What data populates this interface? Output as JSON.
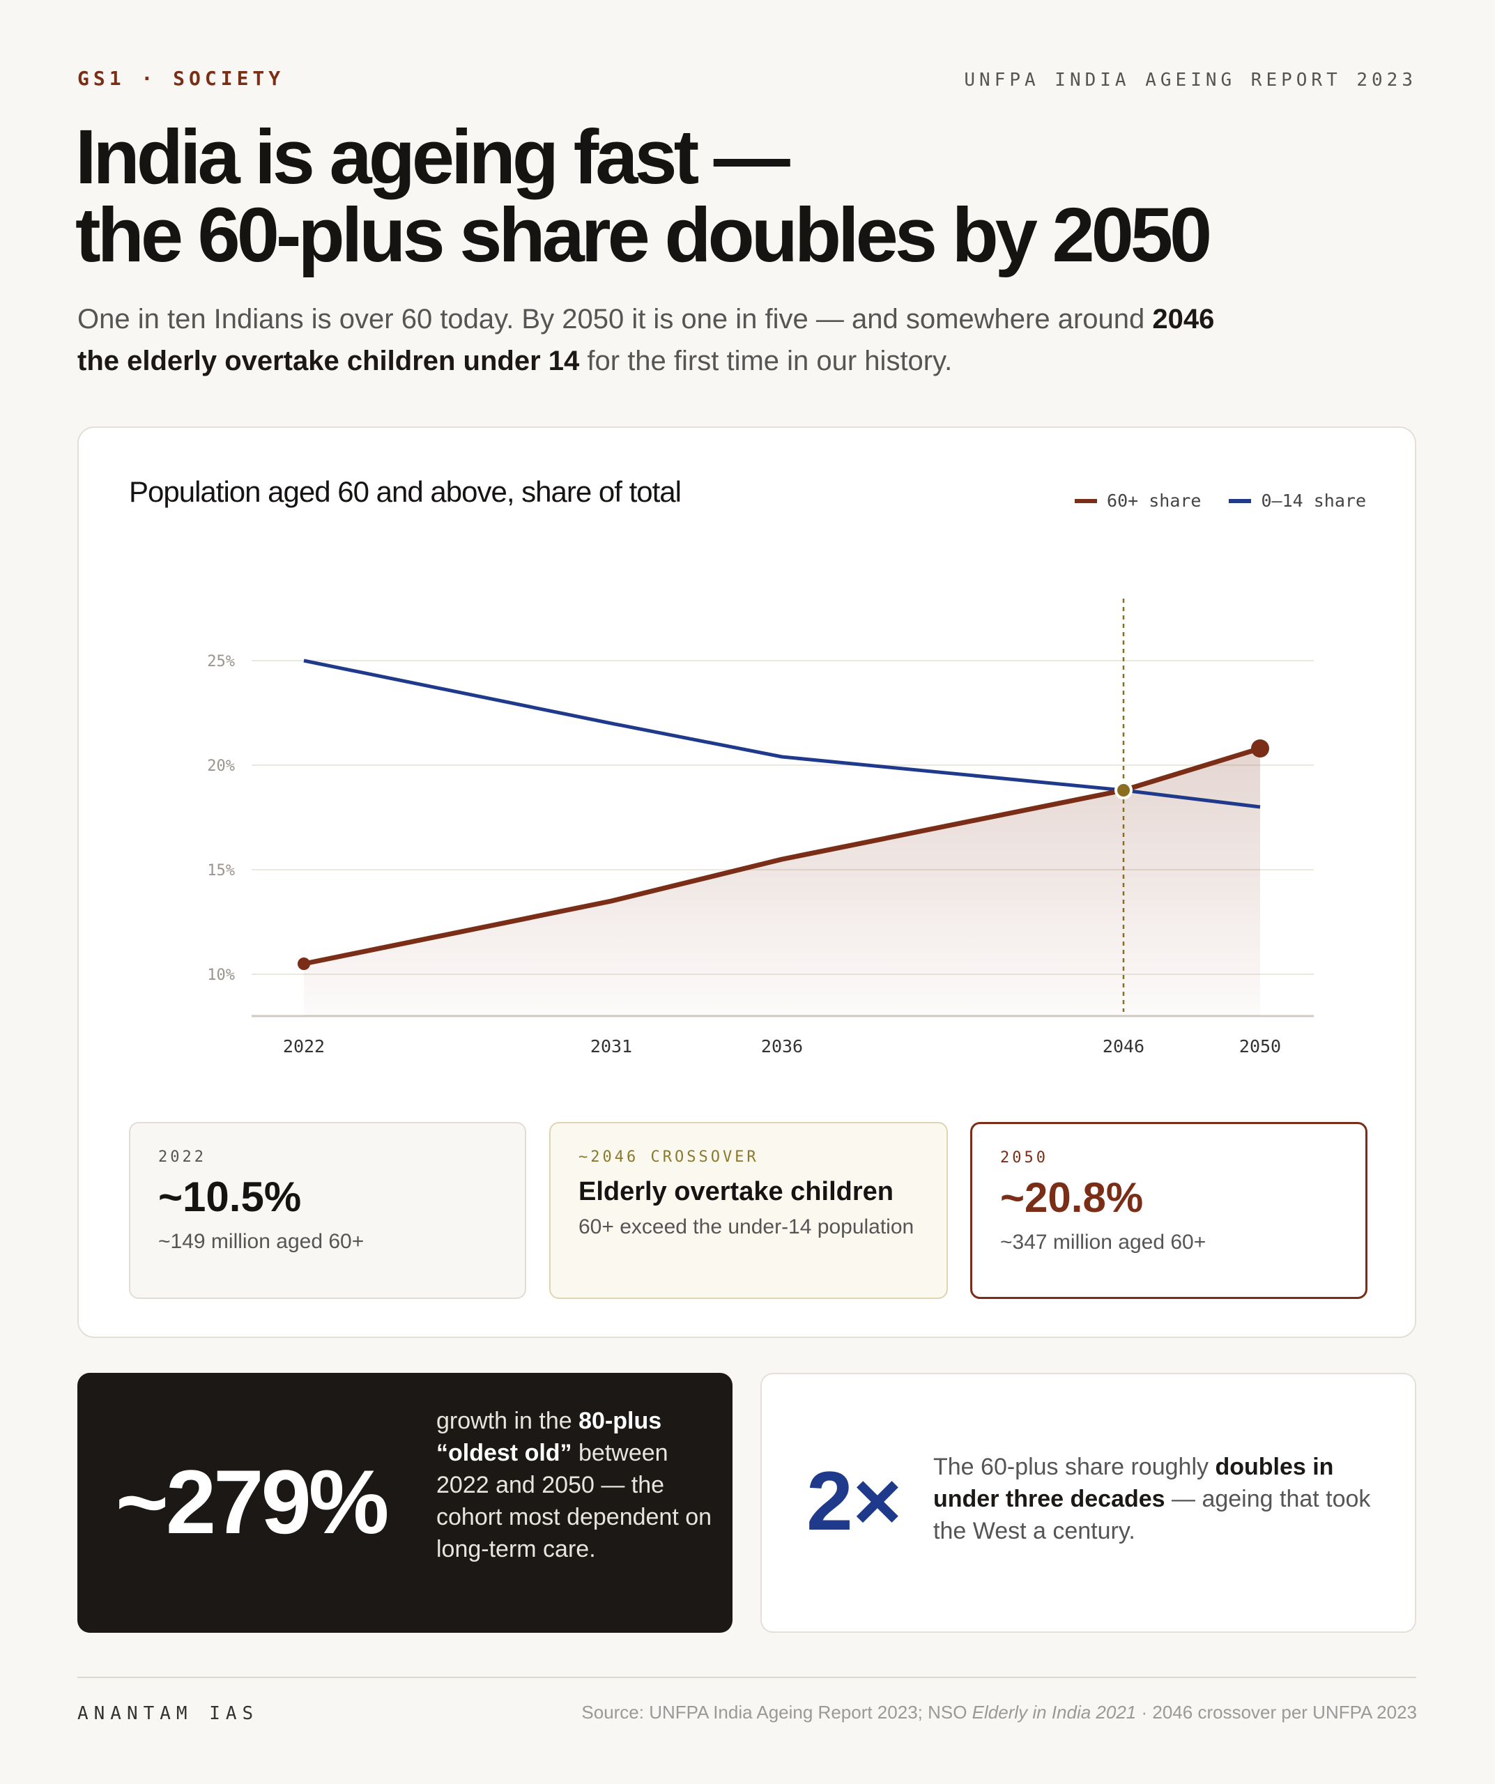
{
  "header": {
    "section": "GS1 · SOCIETY",
    "source_tag": "UNFPA INDIA AGEING REPORT 2023",
    "headline_line1": "India is ageing fast —",
    "headline_line2": "the 60-plus share doubles by 2050",
    "lede_part1": "One in ten Indians is over 60 today. By 2050 it is one in five — and somewhere around ",
    "lede_bold": "2046 the elderly overtake children under 14",
    "lede_part2": " for the first time in our history."
  },
  "chart_data": {
    "type": "line",
    "title": "Population aged 60 and above, share of total",
    "xlabel": "",
    "ylabel": "",
    "x": [
      2022,
      2031,
      2036,
      2046,
      2050
    ],
    "ylim": [
      8,
      28
    ],
    "yticks": [
      10,
      15,
      20,
      25
    ],
    "ytick_labels": [
      "10%",
      "15%",
      "20%",
      "25%"
    ],
    "xtick_labels": [
      "2022",
      "2031",
      "2036",
      "2046",
      "2050"
    ],
    "grid": true,
    "legend_position": "top-right",
    "series": [
      {
        "name": "60+ share",
        "values": [
          10.5,
          13.5,
          15.5,
          18.8,
          20.8
        ],
        "color": "#7a2e17",
        "area_fill": true
      },
      {
        "name": "0–14 share",
        "values": [
          25.0,
          22.0,
          20.4,
          18.8,
          18.0
        ],
        "color": "#1f3a8a"
      }
    ],
    "annotations": [
      {
        "type": "vertical-line",
        "x": 2046,
        "color": "#8a6d1f",
        "marker_value": 18.8
      }
    ]
  },
  "stats": [
    {
      "label": "2022",
      "value": "~10.5%",
      "note": "~149 million aged 60+"
    },
    {
      "label": "~2046 CROSSOVER",
      "heading": "Elderly overtake children",
      "note": "60+ exceed the under-14 population"
    },
    {
      "label": "2050",
      "value": "~20.8%",
      "note": "~347 million aged 60+"
    }
  ],
  "callout_dark": {
    "value": "~279%",
    "text_part1": "growth in the ",
    "text_bold": "80-plus “oldest old”",
    "text_part2": " between 2022 and 2050 — the cohort most dependent on long-term care."
  },
  "callout_light": {
    "value": "2×",
    "text_part1": "The 60-plus share roughly ",
    "text_bold": "doubles in under three decades",
    "text_part2": " — ageing that took the West a century."
  },
  "footer": {
    "brand": "ANANTAM IAS",
    "source_part1": "Source: UNFPA India Ageing Report 2023; NSO ",
    "source_italic": "Elderly in India 2021",
    "source_part2": " · 2046 crossover per UNFPA 2023"
  },
  "colors": {
    "accent": "#7a2e17",
    "navy": "#1f3a8a",
    "gold": "#8a6d1f",
    "background": "#f9f7f3"
  }
}
